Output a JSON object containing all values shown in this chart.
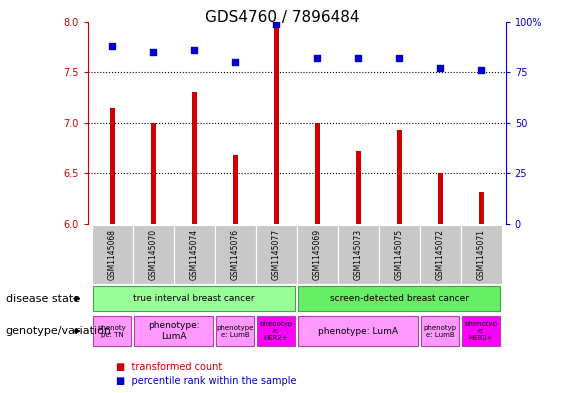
{
  "title": "GDS4760 / 7896484",
  "samples": [
    "GSM1145068",
    "GSM1145070",
    "GSM1145074",
    "GSM1145076",
    "GSM1145077",
    "GSM1145069",
    "GSM1145073",
    "GSM1145075",
    "GSM1145072",
    "GSM1145071"
  ],
  "bar_values": [
    7.15,
    7.0,
    7.3,
    6.68,
    7.95,
    7.0,
    6.72,
    6.93,
    6.5,
    6.32
  ],
  "scatter_values": [
    88,
    85,
    86,
    80,
    99,
    82,
    82,
    82,
    77,
    76
  ],
  "ylim": [
    6.0,
    8.0
  ],
  "y2lim": [
    0,
    100
  ],
  "yticks": [
    6.0,
    6.5,
    7.0,
    7.5,
    8.0
  ],
  "y2ticks": [
    0,
    25,
    50,
    75,
    100
  ],
  "bar_color": "#cc0000",
  "scatter_color": "#0000cc",
  "bar_width": 0.12,
  "disease_state_groups": [
    {
      "label": "true interval breast cancer",
      "start": 0,
      "end": 4,
      "color": "#99ff99"
    },
    {
      "label": "screen-detected breast cancer",
      "start": 5,
      "end": 9,
      "color": "#66ee66"
    }
  ],
  "genotype_groups": [
    {
      "label": "phenoty\npe: TN",
      "start": 0,
      "end": 0,
      "color": "#ff99ff"
    },
    {
      "label": "phenotype:\nLumA",
      "start": 1,
      "end": 2,
      "color": "#ff99ff"
    },
    {
      "label": "phenotype\ne: LumB",
      "start": 3,
      "end": 3,
      "color": "#ff99ff"
    },
    {
      "label": "phenotyp\ne:\nHER2+",
      "start": 4,
      "end": 4,
      "color": "#ff00ff"
    },
    {
      "label": "phenotype: LumA",
      "start": 5,
      "end": 7,
      "color": "#ff99ff"
    },
    {
      "label": "phenotyp\ne: LumB",
      "start": 8,
      "end": 8,
      "color": "#ff99ff"
    },
    {
      "label": "phenotyp\ne:\nHER2+",
      "start": 9,
      "end": 9,
      "color": "#ff00ff"
    }
  ],
  "legend_bar_label": "transformed count",
  "legend_scatter_label": "percentile rank within the sample",
  "label_disease_state": "disease state",
  "label_genotype": "genotype/variation",
  "bg_color": "#ffffff",
  "plot_bg": "#ffffff",
  "tick_color_left": "#cc0000",
  "tick_color_right": "#0000cc",
  "title_fontsize": 11,
  "axis_fontsize": 7,
  "sample_box_color": "#c8c8c8",
  "ds_green_light": "#aaffaa",
  "ds_green_dark": "#55ee55"
}
